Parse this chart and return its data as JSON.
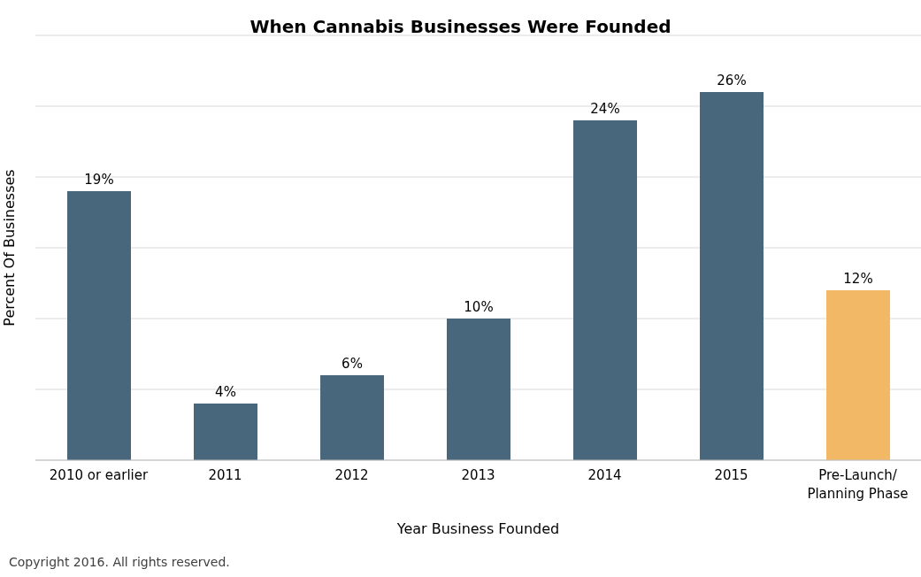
{
  "chart_data": {
    "type": "bar",
    "title": "When Cannabis Businesses Were Founded",
    "xlabel": "Year Business Founded",
    "ylabel": "Percent Of Businesses",
    "categories": [
      "2010 or earlier",
      "2011",
      "2012",
      "2013",
      "2014",
      "2015",
      "Pre-Launch/ Planning Phase"
    ],
    "values": [
      19,
      4,
      6,
      10,
      24,
      26,
      12
    ],
    "value_labels": [
      "19%",
      "4%",
      "6%",
      "10%",
      "24%",
      "26%",
      "12%"
    ],
    "colors": [
      "#48667c",
      "#48667c",
      "#48667c",
      "#48667c",
      "#48667c",
      "#48667c",
      "#f2b866"
    ],
    "ylim": [
      0,
      30
    ],
    "yticks": [
      {
        "value": 0,
        "label": null
      },
      {
        "value": 5,
        "label": null
      },
      {
        "value": 10,
        "label": null
      },
      {
        "value": 15,
        "label": null
      },
      {
        "value": 20,
        "label": null
      },
      {
        "value": 25,
        "label": null
      }
    ],
    "tick_labels": "x",
    "grid": "y",
    "legend": false,
    "annotations": [
      "Copyright 2016. All rights reserved."
    ]
  }
}
